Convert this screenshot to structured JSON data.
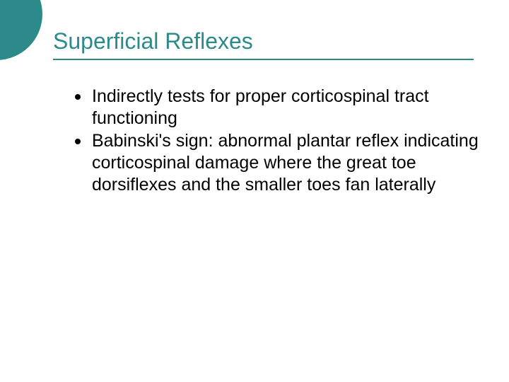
{
  "slide": {
    "title": "Superficial Reflexes",
    "bullets": [
      {
        "text": "Indirectly tests for proper corticospinal tract functioning"
      },
      {
        "text": "Babinski's sign: abnormal plantar reflex indicating corticospinal damage where the great toe dorsiflexes and the smaller toes fan laterally"
      }
    ],
    "style": {
      "accent_color": "#2d8a8a",
      "background_color": "#ffffff",
      "title_fontsize": 32,
      "body_fontsize": 25,
      "title_font": "Arial",
      "body_font": "Verdana",
      "bullet_color": "#000000",
      "text_color": "#000000",
      "circle_diameter": 130,
      "underline_width": 595
    }
  }
}
